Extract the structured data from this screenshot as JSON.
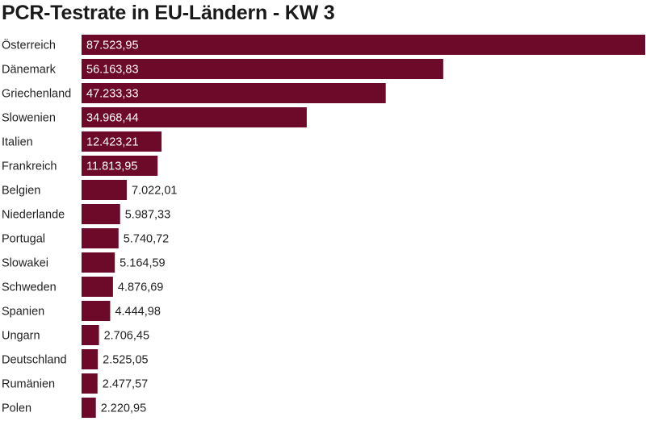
{
  "chart_data": {
    "type": "bar",
    "orientation": "horizontal",
    "title": "PCR-Testrate in EU-Ländern - KW 3",
    "categories": [
      "Österreich",
      "Dänemark",
      "Griechenland",
      "Slowenien",
      "Italien",
      "Frankreich",
      "Belgien",
      "Niederlande",
      "Portugal",
      "Slowakei",
      "Schweden",
      "Spanien",
      "Ungarn",
      "Deutschland",
      "Rumänien",
      "Polen"
    ],
    "values": [
      87523.95,
      56163.83,
      47233.33,
      34968.44,
      12423.21,
      11813.95,
      7022.01,
      5987.33,
      5740.72,
      5164.59,
      4876.69,
      4444.98,
      2706.45,
      2525.05,
      2477.57,
      2220.95
    ],
    "value_labels": [
      "87.523,95",
      "56.163,83",
      "47.233,33",
      "34.968,44",
      "12.423,21",
      "11.813,95",
      "7.022,01",
      "5.987,33",
      "5.740,72",
      "5.164,59",
      "4.876,69",
      "4.444,98",
      "2.706,45",
      "2.525,05",
      "2.477,57",
      "2.220,95"
    ],
    "xlim": [
      0,
      87523.95
    ],
    "xlabel": "",
    "ylabel": "",
    "grid": false,
    "legend": "none",
    "bar_color": "#6e0a29"
  }
}
